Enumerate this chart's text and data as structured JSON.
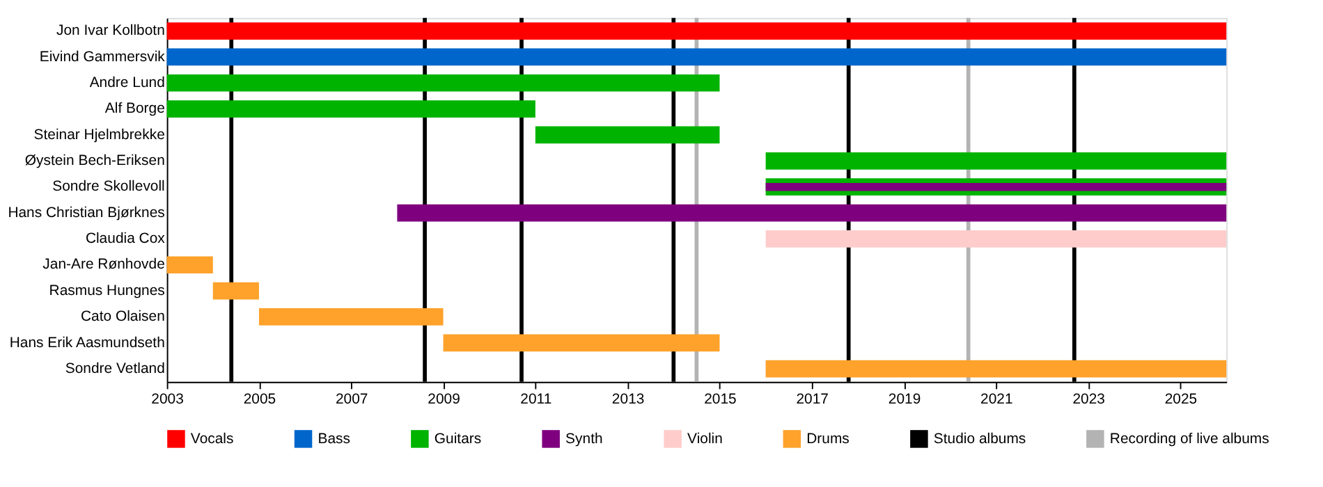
{
  "chart_data": {
    "type": "bar",
    "orientation": "horizontal",
    "categories": [
      "Jon Ivar Kollbotn",
      "Eivind Gammersvik",
      "Andre Lund",
      "Alf Borge",
      "Steinar Hjelmbrekke",
      "Øystein Bech-Eriksen",
      "Sondre Skollevoll",
      "Hans Christian Bjørknes",
      "Claudia Cox",
      "Jan-Are Rønhovde",
      "Rasmus Hungnes",
      "Cato Olaisen",
      "Hans Erik Aasmundseth",
      "Sondre Vetland"
    ],
    "series": [
      {
        "name": "Vocals",
        "color": "#ff0000",
        "base": [
          2003,
          null,
          null,
          null,
          null,
          null,
          null,
          null,
          null,
          null,
          null,
          null,
          null,
          null
        ],
        "values": [
          23,
          null,
          null,
          null,
          null,
          null,
          null,
          null,
          null,
          null,
          null,
          null,
          null,
          null
        ]
      },
      {
        "name": "Bass",
        "color": "#0066cc",
        "base": [
          null,
          2003,
          null,
          null,
          null,
          null,
          null,
          null,
          null,
          null,
          null,
          null,
          null,
          null
        ],
        "values": [
          null,
          23,
          null,
          null,
          null,
          null,
          null,
          null,
          null,
          null,
          null,
          null,
          null,
          null
        ]
      },
      {
        "name": "Guitars",
        "color": "#00b300",
        "base": [
          null,
          null,
          2003,
          2003,
          2011,
          2016,
          2016,
          null,
          null,
          null,
          null,
          null,
          null,
          null
        ],
        "values": [
          null,
          null,
          12,
          8,
          4,
          10,
          10,
          null,
          null,
          null,
          null,
          null,
          null,
          null
        ]
      },
      {
        "name": "Synth",
        "color": "#7f007f",
        "base": [
          null,
          null,
          null,
          null,
          null,
          null,
          2016,
          2008,
          null,
          null,
          null,
          null,
          null,
          null
        ],
        "values": [
          null,
          null,
          null,
          null,
          null,
          null,
          10,
          18,
          null,
          null,
          null,
          null,
          null,
          null
        ]
      },
      {
        "name": "Violin",
        "color": "#ffcccc",
        "base": [
          null,
          null,
          null,
          null,
          null,
          null,
          null,
          null,
          2016,
          null,
          null,
          null,
          null,
          null
        ],
        "values": [
          null,
          null,
          null,
          null,
          null,
          null,
          null,
          null,
          10,
          null,
          null,
          null,
          null,
          null
        ]
      },
      {
        "name": "Drums",
        "color": "#ffa22b",
        "base": [
          null,
          null,
          null,
          null,
          null,
          null,
          null,
          null,
          null,
          2003,
          2004,
          2005,
          2009,
          2016
        ],
        "values": [
          null,
          null,
          null,
          null,
          null,
          null,
          null,
          null,
          null,
          1,
          1,
          4,
          6,
          10
        ]
      }
    ],
    "ref_lines": [
      {
        "axis": "x",
        "value": 2004.4,
        "label": "Studio albums",
        "color": "#000000"
      },
      {
        "axis": "x",
        "value": 2008.6,
        "color": "#000000"
      },
      {
        "axis": "x",
        "value": 2010.7,
        "color": "#000000"
      },
      {
        "axis": "x",
        "value": 2014.0,
        "color": "#000000"
      },
      {
        "axis": "x",
        "value": 2017.8,
        "color": "#000000"
      },
      {
        "axis": "x",
        "value": 2022.7,
        "color": "#000000"
      },
      {
        "axis": "x",
        "value": 2014.5,
        "label": "Recording of live albums",
        "color": "#b3b3b3"
      },
      {
        "axis": "x",
        "value": 2020.4,
        "color": "#b3b3b3"
      }
    ],
    "xlim": [
      2003,
      2026
    ],
    "xticks": [
      2003,
      2005,
      2007,
      2009,
      2011,
      2013,
      2015,
      2017,
      2019,
      2021,
      2023,
      2025
    ],
    "grid": false,
    "legend": "bottom"
  }
}
